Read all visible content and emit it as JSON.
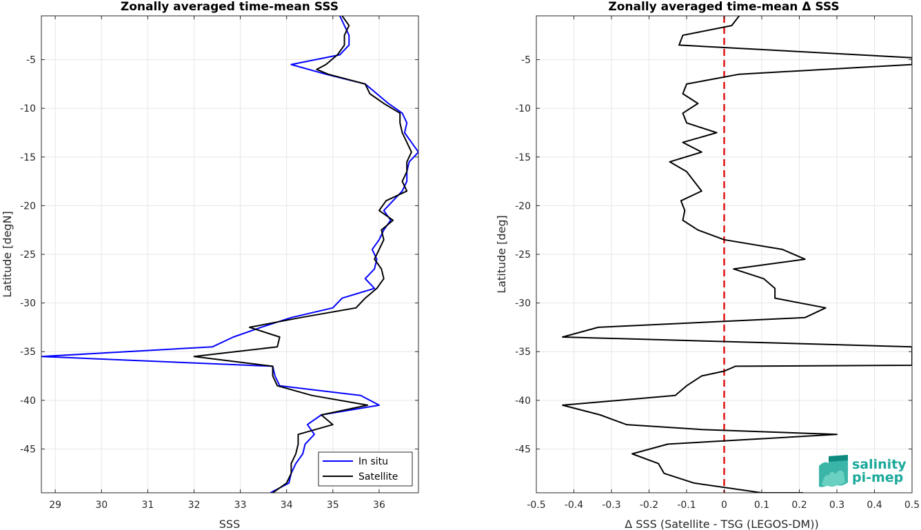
{
  "chart_data": [
    {
      "type": "line",
      "title": "Zonally averaged time-mean SSS",
      "xlabel": "SSS",
      "ylabel": "Latitude [degN]",
      "xlim": [
        28.7,
        36.85
      ],
      "ylim": [
        -49.5,
        -0.5
      ],
      "xticks": [
        29,
        30,
        31,
        32,
        33,
        34,
        35,
        36
      ],
      "yticks": [
        -5,
        -10,
        -15,
        -20,
        -25,
        -30,
        -35,
        -40,
        -45
      ],
      "grid": true,
      "legend_position": "bottom-right",
      "series": [
        {
          "name": "In situ",
          "color": "#0000ff",
          "points": [
            [
              35.15,
              -0.5
            ],
            [
              35.25,
              -1.5
            ],
            [
              35.35,
              -2.5
            ],
            [
              35.35,
              -3.5
            ],
            [
              35.15,
              -4.5
            ],
            [
              34.1,
              -5.5
            ],
            [
              34.85,
              -6.5
            ],
            [
              35.7,
              -7.5
            ],
            [
              35.95,
              -8.5
            ],
            [
              36.2,
              -9.5
            ],
            [
              36.5,
              -10.5
            ],
            [
              36.6,
              -11.5
            ],
            [
              36.55,
              -12.5
            ],
            [
              36.7,
              -13.5
            ],
            [
              36.85,
              -14.5
            ],
            [
              36.65,
              -15.5
            ],
            [
              36.6,
              -16.5
            ],
            [
              36.6,
              -17.5
            ],
            [
              36.5,
              -18.5
            ],
            [
              36.3,
              -19.5
            ],
            [
              36.1,
              -20.5
            ],
            [
              36.25,
              -21.5
            ],
            [
              36.1,
              -22.5
            ],
            [
              36.0,
              -23.5
            ],
            [
              35.85,
              -24.5
            ],
            [
              35.95,
              -25.5
            ],
            [
              35.9,
              -26.5
            ],
            [
              35.7,
              -27.5
            ],
            [
              35.9,
              -28.5
            ],
            [
              35.2,
              -29.5
            ],
            [
              35.0,
              -30.5
            ],
            [
              34.1,
              -31.5
            ],
            [
              33.45,
              -32.5
            ],
            [
              32.85,
              -33.5
            ],
            [
              32.4,
              -34.5
            ],
            [
              28.7,
              -35.5
            ],
            [
              33.7,
              -36.5
            ],
            [
              33.75,
              -37.5
            ],
            [
              33.85,
              -38.5
            ],
            [
              35.6,
              -39.5
            ],
            [
              36.0,
              -40.5
            ],
            [
              34.75,
              -41.5
            ],
            [
              34.45,
              -42.5
            ],
            [
              34.6,
              -43.5
            ],
            [
              34.4,
              -44.5
            ],
            [
              34.35,
              -45.5
            ],
            [
              34.2,
              -46.5
            ],
            [
              34.1,
              -47.5
            ],
            [
              34.05,
              -48.5
            ],
            [
              33.65,
              -49.5
            ]
          ]
        },
        {
          "name": "Satellite",
          "color": "#000000",
          "points": [
            [
              35.2,
              -0.5
            ],
            [
              35.35,
              -1.5
            ],
            [
              35.25,
              -2.5
            ],
            [
              35.25,
              -3.5
            ],
            [
              35.1,
              -4.5
            ],
            [
              34.85,
              -5.5
            ],
            [
              34.65,
              -6.0
            ],
            [
              34.9,
              -6.5
            ],
            [
              35.7,
              -7.5
            ],
            [
              35.8,
              -8.5
            ],
            [
              36.1,
              -9.5
            ],
            [
              36.45,
              -10.5
            ],
            [
              36.45,
              -11.5
            ],
            [
              36.5,
              -12.5
            ],
            [
              36.6,
              -13.5
            ],
            [
              36.7,
              -14.5
            ],
            [
              36.6,
              -15.5
            ],
            [
              36.6,
              -16.5
            ],
            [
              36.5,
              -17.5
            ],
            [
              36.6,
              -18.5
            ],
            [
              36.15,
              -19.5
            ],
            [
              36.0,
              -20.5
            ],
            [
              36.3,
              -21.5
            ],
            [
              36.05,
              -22.5
            ],
            [
              36.1,
              -23.5
            ],
            [
              36.0,
              -24.5
            ],
            [
              35.9,
              -25.5
            ],
            [
              36.05,
              -26.5
            ],
            [
              36.1,
              -27.5
            ],
            [
              35.95,
              -28.5
            ],
            [
              35.7,
              -29.5
            ],
            [
              35.5,
              -30.5
            ],
            [
              34.3,
              -31.5
            ],
            [
              33.2,
              -32.5
            ],
            [
              33.85,
              -33.5
            ],
            [
              33.8,
              -34.5
            ],
            [
              32.0,
              -35.5
            ],
            [
              33.7,
              -36.5
            ],
            [
              33.7,
              -37.5
            ],
            [
              33.8,
              -38.5
            ],
            [
              34.55,
              -39.5
            ],
            [
              35.75,
              -40.5
            ],
            [
              34.75,
              -41.5
            ],
            [
              35.0,
              -42.5
            ],
            [
              34.25,
              -43.5
            ],
            [
              34.25,
              -44.5
            ],
            [
              34.2,
              -45.5
            ],
            [
              34.1,
              -46.5
            ],
            [
              34.1,
              -47.5
            ],
            [
              34.0,
              -48.5
            ],
            [
              33.7,
              -49.5
            ]
          ]
        }
      ]
    },
    {
      "type": "line",
      "title": "Zonally averaged time-mean Δ SSS",
      "xlabel": "Δ SSS (Satellite - TSG (LEGOS-DM))",
      "ylabel": "Latitude [deg]",
      "xlim": [
        -0.5,
        0.5
      ],
      "ylim": [
        -49.5,
        -0.5
      ],
      "xticks": [
        -0.5,
        -0.4,
        -0.3,
        -0.2,
        -0.1,
        0,
        0.1,
        0.2,
        0.3,
        0.4,
        0.5
      ],
      "yticks": [
        -5,
        -10,
        -15,
        -20,
        -25,
        -30,
        -35,
        -40,
        -45
      ],
      "grid": true,
      "zero_line_color": "#e01010",
      "series": [
        {
          "color": "#000000",
          "points": [
            [
              0.04,
              -0.5
            ],
            [
              0.02,
              -1.5
            ],
            [
              -0.11,
              -2.5
            ],
            [
              -0.12,
              -3.5
            ],
            [
              0.5,
              -4.8
            ],
            [
              0.5,
              -5.5
            ],
            [
              0.04,
              -6.5
            ],
            [
              -0.1,
              -7.5
            ],
            [
              -0.11,
              -8.5
            ],
            [
              -0.07,
              -9.5
            ],
            [
              -0.11,
              -10.5
            ],
            [
              -0.1,
              -11.5
            ],
            [
              -0.02,
              -12.5
            ],
            [
              -0.11,
              -13.5
            ],
            [
              -0.06,
              -14.5
            ],
            [
              -0.145,
              -15.5
            ],
            [
              -0.1,
              -16.5
            ],
            [
              -0.08,
              -17.5
            ],
            [
              -0.06,
              -18.5
            ],
            [
              -0.115,
              -19.5
            ],
            [
              -0.105,
              -20.5
            ],
            [
              -0.11,
              -21.5
            ],
            [
              -0.07,
              -22.5
            ],
            [
              0.0,
              -23.5
            ],
            [
              0.155,
              -24.5
            ],
            [
              0.215,
              -25.5
            ],
            [
              0.025,
              -26.5
            ],
            [
              0.105,
              -27.5
            ],
            [
              0.135,
              -28.5
            ],
            [
              0.135,
              -29.5
            ],
            [
              0.27,
              -30.5
            ],
            [
              0.215,
              -31.5
            ],
            [
              -0.335,
              -32.5
            ],
            [
              -0.43,
              -33.5
            ],
            [
              0.5,
              -34.5
            ],
            [
              0.5,
              -36.4
            ],
            [
              0.03,
              -36.5
            ],
            [
              0.0,
              -37.0
            ],
            [
              -0.06,
              -37.5
            ],
            [
              -0.1,
              -38.5
            ],
            [
              -0.13,
              -39.5
            ],
            [
              -0.43,
              -40.5
            ],
            [
              -0.33,
              -41.5
            ],
            [
              -0.26,
              -42.5
            ],
            [
              -0.06,
              -43.0
            ],
            [
              0.3,
              -43.5
            ],
            [
              -0.15,
              -44.5
            ],
            [
              -0.245,
              -45.5
            ],
            [
              -0.175,
              -46.5
            ],
            [
              -0.16,
              -47.5
            ],
            [
              -0.08,
              -48.5
            ],
            [
              0.1,
              -49.5
            ],
            [
              0.21,
              -49.5
            ]
          ]
        }
      ]
    }
  ],
  "logo": {
    "line1": "salinity",
    "line2": "pi-mep",
    "color": "#1aa89a"
  }
}
